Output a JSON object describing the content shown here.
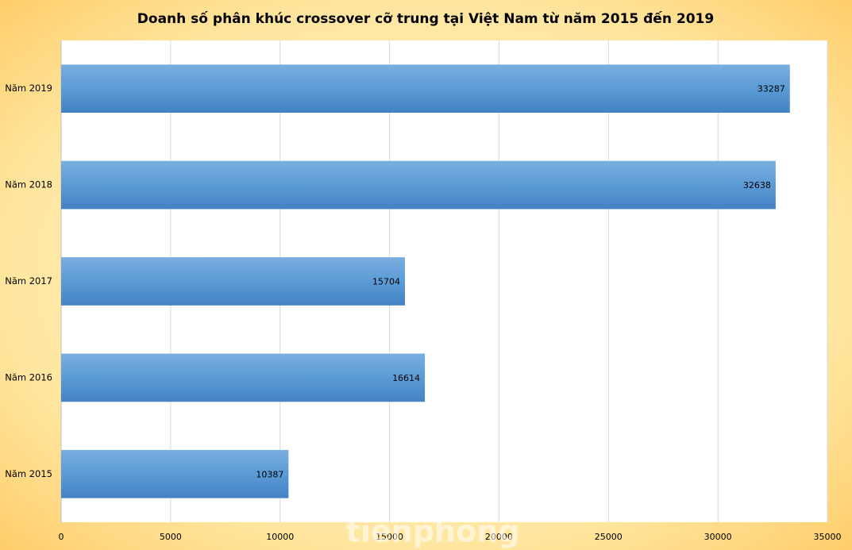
{
  "chart_data": {
    "type": "barh",
    "title": "Doanh số phân khúc crossover cỡ trung tại Việt Nam từ năm 2015 đến 2019",
    "categories": [
      "Năm 2019",
      "Năm 2018",
      "Năm 2017",
      "Năm 2016",
      "Năm 2015"
    ],
    "values": [
      33287,
      32638,
      15704,
      16614,
      10387
    ],
    "color": "#5b9bd5",
    "xlim": [
      0,
      35000
    ],
    "xticks": [
      0,
      5000,
      10000,
      15000,
      20000,
      25000,
      30000,
      35000
    ],
    "grid": true
  },
  "watermark": "tienphong"
}
